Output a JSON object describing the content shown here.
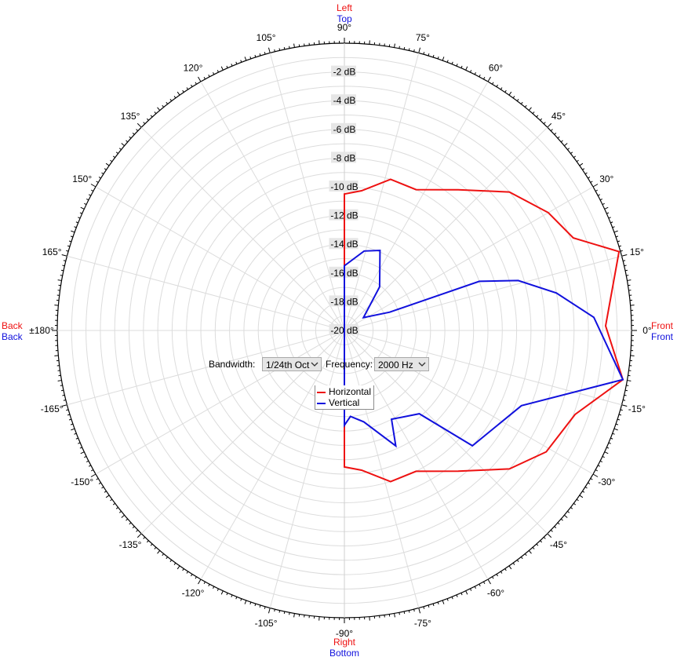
{
  "chart_data": {
    "type": "polar-line",
    "angle_labels": [
      {
        "angle": 90,
        "text": "90°"
      },
      {
        "angle": 75,
        "text": "75°"
      },
      {
        "angle": 60,
        "text": "60°"
      },
      {
        "angle": 45,
        "text": "45°"
      },
      {
        "angle": 30,
        "text": "30°"
      },
      {
        "angle": 15,
        "text": "15°"
      },
      {
        "angle": 0,
        "text": "0°"
      },
      {
        "angle": -15,
        "text": "-15°"
      },
      {
        "angle": -30,
        "text": "-30°"
      },
      {
        "angle": -45,
        "text": "-45°"
      },
      {
        "angle": -60,
        "text": "-60°"
      },
      {
        "angle": -75,
        "text": "-75°"
      },
      {
        "angle": -90,
        "text": "-90°"
      },
      {
        "angle": -105,
        "text": "-105°"
      },
      {
        "angle": -120,
        "text": "-120°"
      },
      {
        "angle": -135,
        "text": "-135°"
      },
      {
        "angle": -150,
        "text": "-150°"
      },
      {
        "angle": -165,
        "text": "-165°"
      },
      {
        "angle": 180,
        "text": "±180°"
      },
      {
        "angle": 165,
        "text": "165°"
      },
      {
        "angle": 150,
        "text": "150°"
      },
      {
        "angle": 135,
        "text": "135°"
      },
      {
        "angle": 120,
        "text": "120°"
      },
      {
        "angle": 105,
        "text": "105°"
      }
    ],
    "radial_labels": [
      "-2 dB",
      "-4 dB",
      "-6 dB",
      "-8 dB",
      "-10 dB",
      "-12 dB",
      "-14 dB",
      "-16 dB",
      "-18 dB",
      "-20 dB"
    ],
    "radial_range_db": [
      -20,
      0
    ],
    "side_labels": {
      "top_h": "Left",
      "top_v": "Top",
      "bottom_h": "Right",
      "bottom_v": "Bottom",
      "left_h": "Back",
      "left_v": "Back",
      "right_h": "Front",
      "right_v": "Front"
    },
    "series": [
      {
        "name": "Horizontal",
        "color": "#ee1111",
        "points": [
          {
            "angle": 90,
            "db": -20
          },
          {
            "angle": 90,
            "db": -10.5
          },
          {
            "angle": 83,
            "db": -10.2
          },
          {
            "angle": 73,
            "db": -9.0
          },
          {
            "angle": 63,
            "db": -9.0
          },
          {
            "angle": 51,
            "db": -7.4
          },
          {
            "angle": 40,
            "db": -5.0
          },
          {
            "angle": 30,
            "db": -3.6
          },
          {
            "angle": 22,
            "db": -2.8
          },
          {
            "angle": 16,
            "db": -0.1
          },
          {
            "angle": 1,
            "db": -1.8
          },
          {
            "angle": -10,
            "db": -0.3
          },
          {
            "angle": -20,
            "db": -2.9
          },
          {
            "angle": -31,
            "db": -3.6
          },
          {
            "angle": -40,
            "db": -5.0
          },
          {
            "angle": -51,
            "db": -7.4
          },
          {
            "angle": -63,
            "db": -9.0
          },
          {
            "angle": -73,
            "db": -9.0
          },
          {
            "angle": -83,
            "db": -10.2
          },
          {
            "angle": -90,
            "db": -10.5
          },
          {
            "angle": -90,
            "db": -20
          }
        ]
      },
      {
        "name": "Vertical",
        "color": "#1111dd",
        "points": [
          {
            "angle": 90,
            "db": -20
          },
          {
            "angle": 90,
            "db": -15.5
          },
          {
            "angle": 76,
            "db": -14.3
          },
          {
            "angle": 66,
            "db": -13.9
          },
          {
            "angle": 51,
            "db": -16.1
          },
          {
            "angle": 34,
            "db": -18.4
          },
          {
            "angle": 22,
            "db": -16.6
          },
          {
            "angle": 20,
            "db": -10.0
          },
          {
            "angle": 16,
            "db": -7.4
          },
          {
            "angle": 10,
            "db": -5.0
          },
          {
            "angle": 3,
            "db": -2.6
          },
          {
            "angle": -10,
            "db": -0.3
          },
          {
            "angle": -23,
            "db": -6.6
          },
          {
            "angle": -42,
            "db": -8.0
          },
          {
            "angle": -48,
            "db": -12.2
          },
          {
            "angle": -62,
            "db": -13.0
          },
          {
            "angle": -66,
            "db": -11.2
          },
          {
            "angle": -78,
            "db": -13.5
          },
          {
            "angle": -86,
            "db": -14.0
          },
          {
            "angle": -90,
            "db": -13.4
          },
          {
            "angle": -90,
            "db": -20
          }
        ]
      }
    ],
    "legend_placement": "center-below"
  },
  "controls": {
    "bandwidth_label": "Bandwidth:",
    "bandwidth_value": "1/24th Oct",
    "frequency_label": "Frequency:",
    "frequency_value": "2000 Hz"
  },
  "legend": {
    "horizontal": "Horizontal",
    "vertical": "Vertical"
  }
}
